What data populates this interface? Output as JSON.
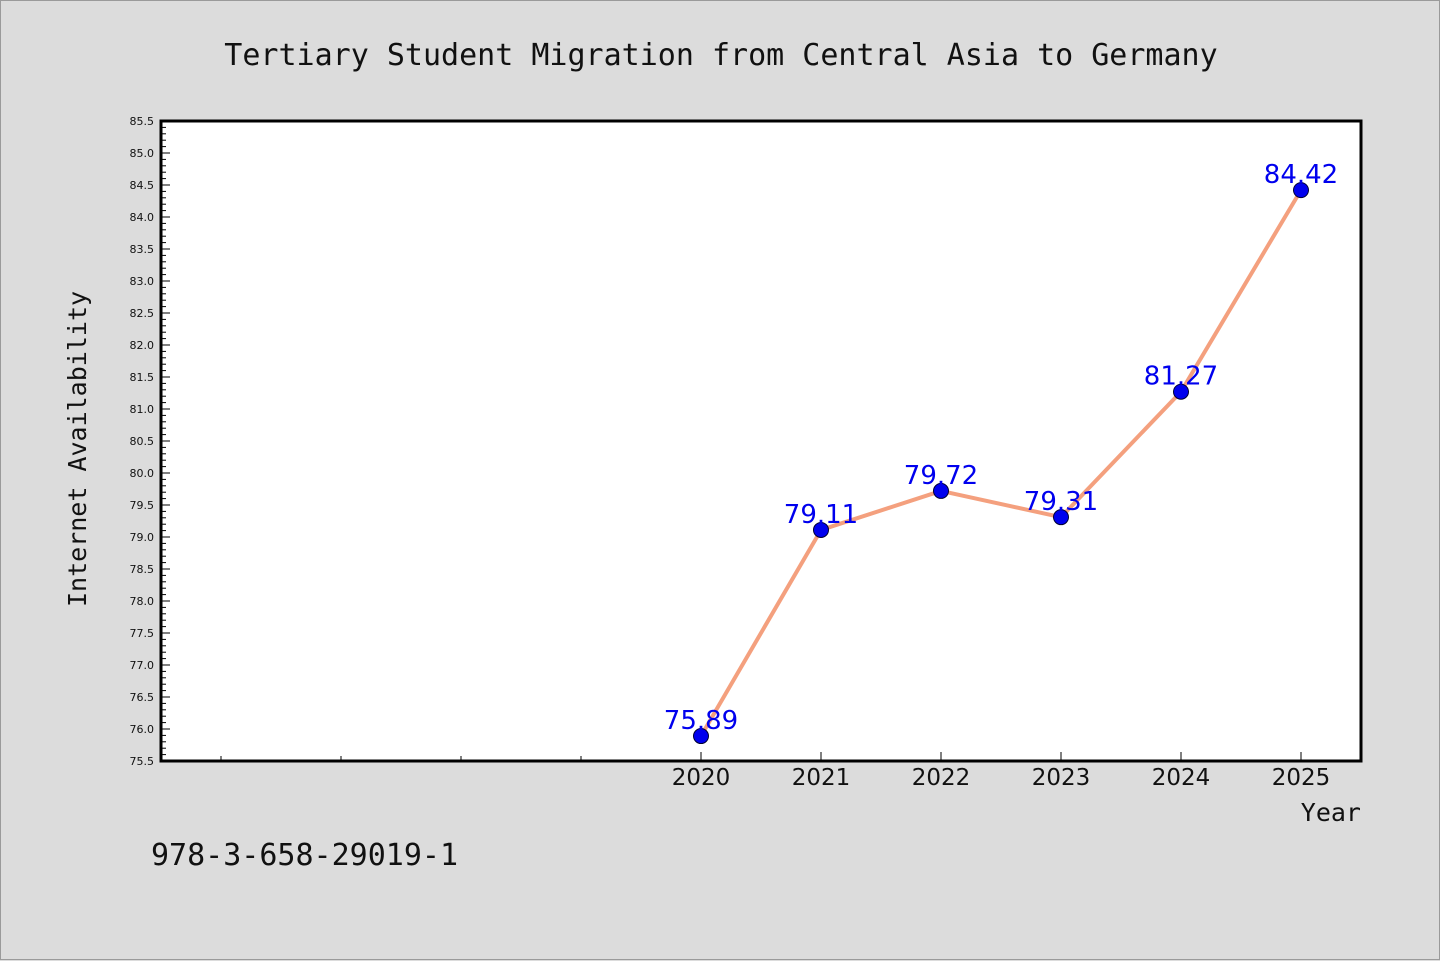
{
  "chart_data": {
    "type": "line",
    "title": "Tertiary Student Migration from Central Asia to Germany",
    "xlabel": "Year",
    "ylabel": "Internet Availability",
    "x": [
      "2020",
      "2021",
      "2022",
      "2023",
      "2024",
      "2025"
    ],
    "series": [
      {
        "values": [
          75.89,
          79.11,
          79.72,
          79.31,
          81.27,
          84.42
        ],
        "labels": [
          "75.89",
          "79.11",
          "79.72",
          "79.31",
          "81.27",
          "84.42"
        ],
        "line_color": "#f4a07e",
        "marker_color": "#0000ee",
        "label_color": "#0000ee"
      }
    ],
    "ylim": [
      75.5,
      85.5
    ],
    "yticks": [
      "75.5",
      "76.0",
      "76.5",
      "77.0",
      "77.5",
      "78.0",
      "78.5",
      "79.0",
      "79.5",
      "80.0",
      "80.5",
      "81.0",
      "81.5",
      "82.0",
      "82.5",
      "83.0",
      "83.5",
      "84.0",
      "84.5",
      "85.0",
      "85.5"
    ],
    "grid": false,
    "legend": "none"
  },
  "footer": {
    "isbn": "978-3-658-29019-1"
  },
  "colors": {
    "background": "#dcdcdc",
    "plot_background": "#ffffff",
    "axis": "#000000"
  }
}
